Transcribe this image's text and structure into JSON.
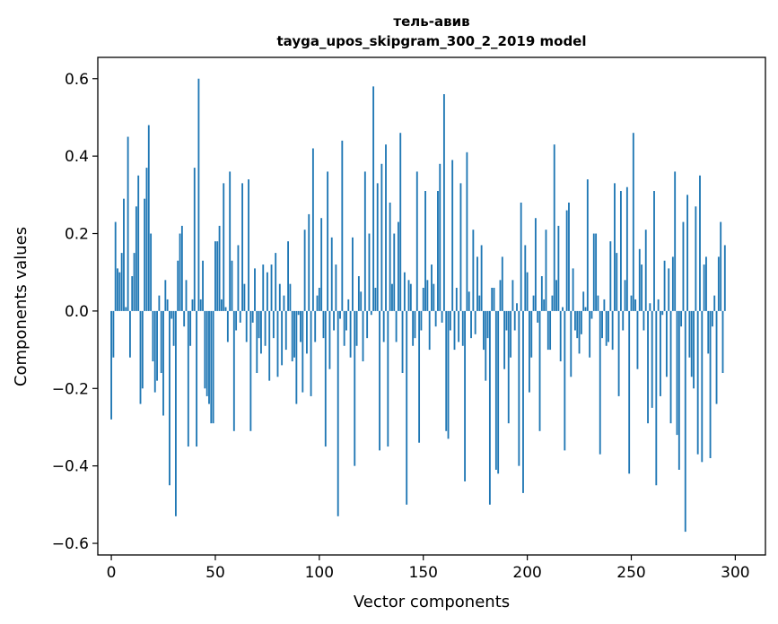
{
  "chart_data": {
    "type": "bar",
    "title": "тель-авив",
    "subtitle": "tayga_upos_skipgram_300_2_2019 model",
    "xlabel": "Vector components",
    "ylabel": "Components values",
    "xlim": [
      -6.5,
      314.5
    ],
    "ylim": [
      -0.63,
      0.655
    ],
    "xticks": [
      0,
      50,
      100,
      150,
      200,
      250,
      300
    ],
    "yticks": [
      -0.6,
      -0.4,
      -0.2,
      0.0,
      0.2,
      0.4,
      0.6
    ],
    "xtick_labels": [
      "0",
      "50",
      "100",
      "150",
      "200",
      "250",
      "300"
    ],
    "ytick_labels": [
      "−0.6",
      "−0.4",
      "−0.2",
      "0.0",
      "0.2",
      "0.4",
      "0.6"
    ],
    "bar_color": "#1f77b4",
    "values": [
      -0.28,
      -0.12,
      0.23,
      0.11,
      0.1,
      0.15,
      0.29,
      0.01,
      0.45,
      -0.12,
      0.09,
      0.15,
      0.27,
      0.35,
      -0.24,
      -0.2,
      0.29,
      0.37,
      0.48,
      0.2,
      -0.13,
      -0.21,
      -0.18,
      0.04,
      -0.16,
      -0.27,
      0.08,
      0.03,
      -0.45,
      -0.02,
      -0.09,
      -0.53,
      0.13,
      0.2,
      0.22,
      -0.04,
      0.08,
      -0.35,
      -0.09,
      0.03,
      0.37,
      -0.35,
      0.6,
      0.03,
      0.13,
      -0.2,
      -0.22,
      -0.24,
      -0.29,
      -0.29,
      0.18,
      0.18,
      0.22,
      0.03,
      0.33,
      0.01,
      -0.08,
      0.36,
      0.13,
      -0.31,
      -0.05,
      0.17,
      -0.03,
      0.33,
      0.07,
      -0.08,
      0.34,
      -0.31,
      -0.03,
      0.11,
      -0.16,
      -0.07,
      -0.11,
      0.12,
      -0.09,
      0.1,
      -0.18,
      0.12,
      -0.07,
      0.15,
      -0.17,
      0.07,
      -0.14,
      0.04,
      -0.1,
      0.18,
      0.07,
      -0.13,
      -0.12,
      -0.24,
      -0.01,
      -0.08,
      -0.21,
      0.21,
      -0.11,
      0.25,
      -0.22,
      0.42,
      -0.08,
      0.04,
      0.06,
      0.24,
      -0.07,
      -0.35,
      0.36,
      -0.15,
      0.19,
      -0.05,
      0.12,
      -0.53,
      -0.02,
      0.44,
      -0.09,
      -0.05,
      0.03,
      -0.12,
      0.19,
      -0.4,
      -0.09,
      0.09,
      0.05,
      -0.13,
      0.36,
      -0.07,
      0.2,
      -0.01,
      0.58,
      0.06,
      0.33,
      -0.36,
      0.38,
      -0.08,
      0.43,
      -0.35,
      0.28,
      0.07,
      0.2,
      -0.08,
      0.23,
      0.46,
      -0.16,
      0.1,
      -0.5,
      0.08,
      0.07,
      -0.09,
      -0.07,
      0.36,
      -0.34,
      -0.05,
      0.06,
      0.31,
      0.08,
      -0.1,
      0.12,
      0.07,
      -0.04,
      0.31,
      0.38,
      -0.03,
      0.56,
      -0.31,
      -0.33,
      -0.05,
      0.39,
      -0.1,
      0.06,
      -0.08,
      0.33,
      -0.09,
      -0.44,
      0.41,
      0.05,
      -0.07,
      0.21,
      -0.06,
      0.14,
      0.04,
      0.17,
      -0.1,
      -0.18,
      -0.07,
      -0.5,
      0.06,
      0.06,
      -0.41,
      -0.42,
      0.08,
      0.14,
      -0.15,
      -0.05,
      -0.29,
      -0.12,
      0.08,
      -0.05,
      0.02,
      -0.4,
      0.28,
      -0.47,
      0.17,
      0.1,
      -0.21,
      -0.12,
      0.04,
      0.24,
      -0.03,
      -0.31,
      0.09,
      0.03,
      0.21,
      -0.1,
      -0.1,
      0.04,
      0.43,
      0.08,
      0.22,
      -0.13,
      0.01,
      -0.36,
      0.26,
      0.28,
      -0.17,
      0.11,
      -0.05,
      -0.07,
      -0.11,
      -0.06,
      0.05,
      0.01,
      0.34,
      -0.12,
      -0.02,
      0.2,
      0.2,
      0.04,
      -0.37,
      -0.07,
      0.03,
      -0.09,
      -0.08,
      0.18,
      -0.1,
      0.33,
      0.15,
      -0.22,
      0.31,
      -0.05,
      0.08,
      0.32,
      -0.42,
      0.04,
      0.46,
      0.03,
      -0.15,
      0.16,
      0.12,
      -0.05,
      0.21,
      -0.29,
      0.02,
      -0.25,
      0.31,
      -0.45,
      0.03,
      -0.22,
      -0.01,
      0.13,
      -0.17,
      0.11,
      -0.29,
      0.14,
      0.36,
      -0.32,
      -0.41,
      -0.04,
      0.23,
      -0.57,
      0.3,
      -0.12,
      -0.17,
      -0.2,
      0.27,
      -0.37,
      0.35,
      -0.39,
      0.12,
      0.14,
      -0.11,
      -0.38,
      -0.04,
      0.04,
      -0.24,
      0.14,
      0.23,
      -0.16,
      0.17
    ]
  }
}
